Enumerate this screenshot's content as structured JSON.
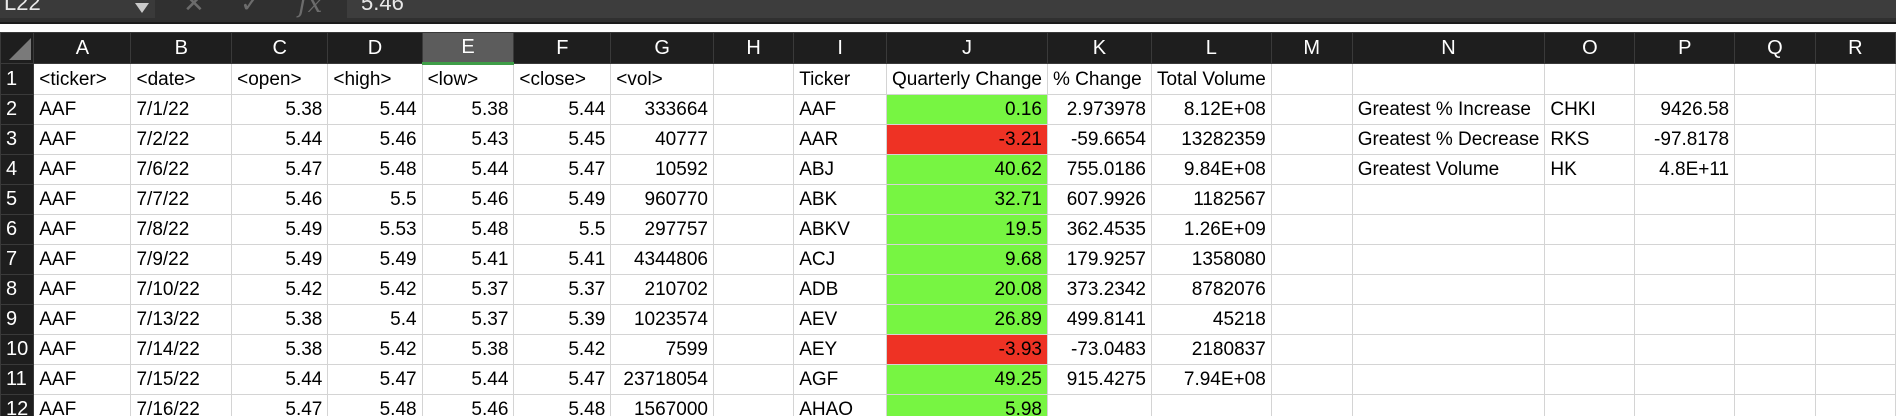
{
  "formula_bar": {
    "name_box": "L22",
    "cancel_icon": "✕",
    "confirm_icon": "✓",
    "fx_label": "fx",
    "formula": "5.46"
  },
  "colors": {
    "positive": "#77f542",
    "negative": "#ee3224",
    "header_bg": "#1e1e1e"
  },
  "columns": [
    "A",
    "B",
    "C",
    "D",
    "E",
    "F",
    "G",
    "H",
    "I",
    "J",
    "K",
    "L",
    "M",
    "N",
    "O",
    "P",
    "Q",
    "R"
  ],
  "selected_column": "E",
  "rows": [
    {
      "num": "1",
      "cells": [
        "<ticker>",
        "<date>",
        "<open>",
        "<high>",
        "<low>",
        "<close>",
        "<vol>",
        "",
        "Ticker",
        "Quarterly Change",
        "% Change",
        "Total Volume",
        "",
        "",
        "",
        "",
        "",
        ""
      ]
    },
    {
      "num": "2",
      "cells": [
        "AAF",
        "7/1/22",
        "5.38",
        "5.44",
        "5.38",
        "5.44",
        "333664",
        "",
        "AAF",
        "0.16",
        "2.973978",
        "8.12E+08",
        "",
        "Greatest % Increase",
        "CHKI",
        "9426.58",
        "",
        ""
      ]
    },
    {
      "num": "3",
      "cells": [
        "AAF",
        "7/2/22",
        "5.44",
        "5.46",
        "5.43",
        "5.45",
        "40777",
        "",
        "AAR",
        "-3.21",
        "-59.6654",
        "13282359",
        "",
        "Greatest % Decrease",
        "RKS",
        "-97.8178",
        "",
        ""
      ]
    },
    {
      "num": "4",
      "cells": [
        "AAF",
        "7/6/22",
        "5.47",
        "5.48",
        "5.44",
        "5.47",
        "10592",
        "",
        "ABJ",
        "40.62",
        "755.0186",
        "9.84E+08",
        "",
        "Greatest Volume",
        "HK",
        "4.8E+11",
        "",
        ""
      ]
    },
    {
      "num": "5",
      "cells": [
        "AAF",
        "7/7/22",
        "5.46",
        "5.5",
        "5.46",
        "5.49",
        "960770",
        "",
        "ABK",
        "32.71",
        "607.9926",
        "1182567",
        "",
        "",
        "",
        "",
        "",
        ""
      ]
    },
    {
      "num": "6",
      "cells": [
        "AAF",
        "7/8/22",
        "5.49",
        "5.53",
        "5.48",
        "5.5",
        "297757",
        "",
        "ABKV",
        "19.5",
        "362.4535",
        "1.26E+09",
        "",
        "",
        "",
        "",
        "",
        ""
      ]
    },
    {
      "num": "7",
      "cells": [
        "AAF",
        "7/9/22",
        "5.49",
        "5.49",
        "5.41",
        "5.41",
        "4344806",
        "",
        "ACJ",
        "9.68",
        "179.9257",
        "1358080",
        "",
        "",
        "",
        "",
        "",
        ""
      ]
    },
    {
      "num": "8",
      "cells": [
        "AAF",
        "7/10/22",
        "5.42",
        "5.42",
        "5.37",
        "5.37",
        "210702",
        "",
        "ADB",
        "20.08",
        "373.2342",
        "8782076",
        "",
        "",
        "",
        "",
        "",
        ""
      ]
    },
    {
      "num": "9",
      "cells": [
        "AAF",
        "7/13/22",
        "5.38",
        "5.4",
        "5.37",
        "5.39",
        "1023574",
        "",
        "AEV",
        "26.89",
        "499.8141",
        "45218",
        "",
        "",
        "",
        "",
        "",
        ""
      ]
    },
    {
      "num": "10",
      "cells": [
        "AAF",
        "7/14/22",
        "5.38",
        "5.42",
        "5.38",
        "5.42",
        "7599",
        "",
        "AEY",
        "-3.93",
        "-73.0483",
        "2180837",
        "",
        "",
        "",
        "",
        "",
        ""
      ]
    },
    {
      "num": "11",
      "cells": [
        "AAF",
        "7/15/22",
        "5.44",
        "5.47",
        "5.44",
        "5.47",
        "23718054",
        "",
        "AGF",
        "49.25",
        "915.4275",
        "7.94E+08",
        "",
        "",
        "",
        "",
        "",
        ""
      ]
    },
    {
      "num": "12",
      "cells": [
        "AAF",
        "7/16/22",
        "5.47",
        "5.48",
        "5.46",
        "5.48",
        "1567000",
        "",
        "AHAO",
        "5.98",
        "",
        "",
        "",
        "",
        "",
        "",
        "",
        ""
      ]
    }
  ]
}
